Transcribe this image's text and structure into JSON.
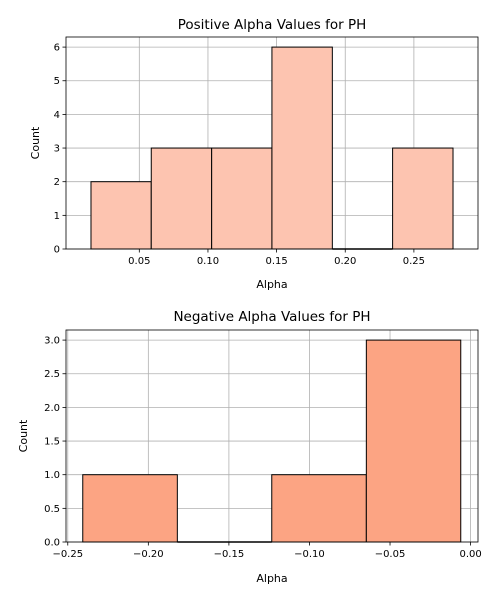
{
  "chart_data": [
    {
      "type": "bar",
      "title": "Positive Alpha Values for PH",
      "xlabel": "Alpha",
      "ylabel": "Count",
      "color": "#fdc4b0",
      "bin_edges": [
        0.0148,
        0.0587,
        0.1027,
        0.1466,
        0.1906,
        0.2345,
        0.2785
      ],
      "counts": [
        2,
        3,
        3,
        6,
        0,
        3
      ],
      "xlim": [
        -0.0034,
        0.2967
      ],
      "ylim": [
        0,
        6.3
      ],
      "xticks": [
        0.05,
        0.1,
        0.15,
        0.2,
        0.25
      ],
      "xtick_labels": [
        "0.05",
        "0.10",
        "0.15",
        "0.20",
        "0.25"
      ],
      "yticks": [
        0,
        1,
        2,
        3,
        4,
        5,
        6
      ],
      "ytick_labels": [
        "0",
        "1",
        "2",
        "3",
        "4",
        "5",
        "6"
      ],
      "grid": true
    },
    {
      "type": "bar",
      "title": "Negative Alpha Values for PH",
      "xlabel": "Alpha",
      "ylabel": "Count",
      "color": "#fca483",
      "bin_edges": [
        -0.2407,
        -0.182,
        -0.1234,
        -0.0647,
        -0.0061
      ],
      "counts": [
        1,
        0,
        1,
        3
      ],
      "xlim": [
        -0.2511,
        0.0046
      ],
      "ylim": [
        0,
        3.15
      ],
      "xticks": [
        -0.25,
        -0.2,
        -0.15,
        -0.1,
        -0.05,
        0.0
      ],
      "xtick_labels": [
        "−0.25",
        "−0.20",
        "−0.15",
        "−0.10",
        "−0.05",
        "0.00"
      ],
      "yticks": [
        0,
        0.5,
        1.0,
        1.5,
        2.0,
        2.5,
        3.0
      ],
      "ytick_labels": [
        "0.0",
        "0.5",
        "1.0",
        "1.5",
        "2.0",
        "2.5",
        "3.0"
      ],
      "grid": true
    }
  ]
}
